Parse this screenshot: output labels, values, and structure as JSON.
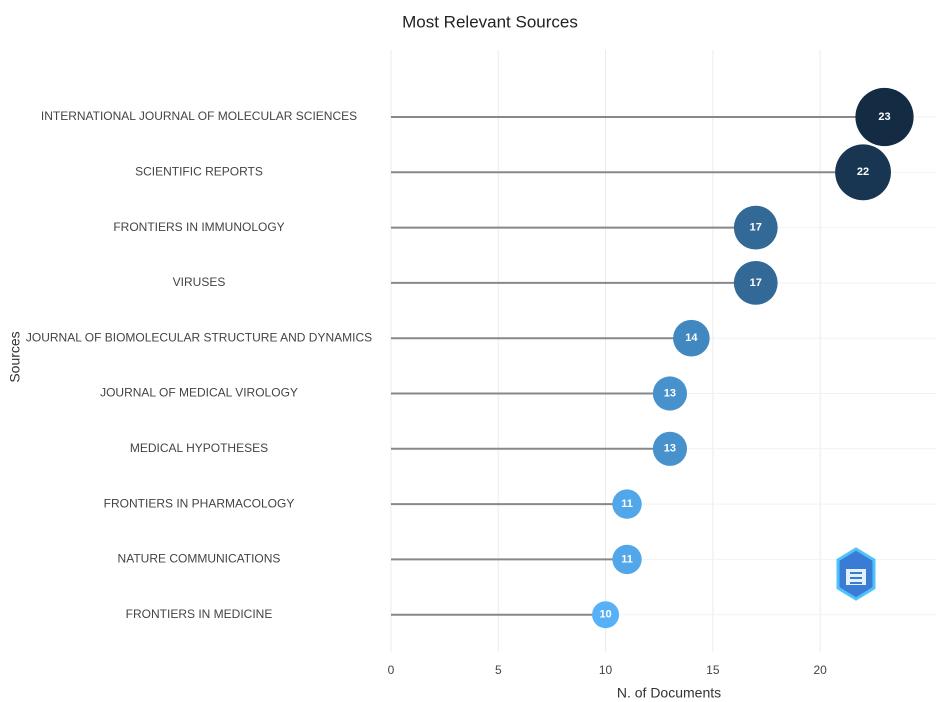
{
  "chart_data": {
    "type": "lollipop",
    "title": "Most Relevant Sources",
    "x_label": "N. of Documents",
    "y_label": "Sources",
    "categories": [
      "INTERNATIONAL JOURNAL OF MOLECULAR SCIENCES",
      "SCIENTIFIC REPORTS",
      "FRONTIERS IN IMMUNOLOGY",
      "VIRUSES",
      "JOURNAL OF BIOMOLECULAR STRUCTURE AND DYNAMICS",
      "JOURNAL OF MEDICAL VIROLOGY",
      "MEDICAL HYPOTHESES",
      "FRONTIERS IN PHARMACOLOGY",
      "NATURE COMMUNICATIONS",
      "FRONTIERS IN MEDICINE"
    ],
    "values": [
      23,
      22,
      17,
      17,
      14,
      13,
      13,
      11,
      11,
      10
    ],
    "color_low": "#56b1f7",
    "color_high": "#132b43",
    "segment_color": "#888888",
    "xlim": [
      0,
      25.4
    ],
    "xticks": [
      0,
      5,
      10,
      15,
      20
    ],
    "grid": true
  }
}
